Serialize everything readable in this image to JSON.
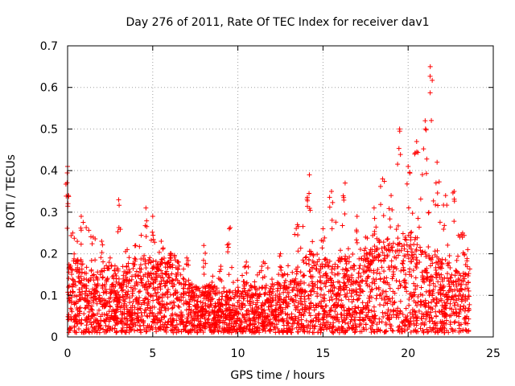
{
  "chart_data": {
    "type": "scatter",
    "title": "Day 276 of 2011, Rate Of TEC Index for receiver dav1",
    "xlabel": "GPS time / hours",
    "ylabel": "ROTI / TECUs",
    "xlim": [
      0,
      25
    ],
    "ylim": [
      0,
      0.7
    ],
    "x_ticks": [
      0,
      5,
      10,
      15,
      20,
      25
    ],
    "x_tick_labels": [
      "0",
      "5",
      "10",
      "15",
      "20",
      "25"
    ],
    "y_ticks": [
      0,
      0.1,
      0.2,
      0.3,
      0.4,
      0.5,
      0.6,
      0.7
    ],
    "y_tick_labels": [
      "0",
      "0.1",
      "0.2",
      "0.3",
      "0.4",
      "0.5",
      "0.6",
      "0.7"
    ],
    "grid": true,
    "marker": "+",
    "series": [
      {
        "name": "dav1",
        "color": "#ff0000",
        "notes": "dense cloud of ~5000 points, mostly 0.0–0.25; peaks listed as envelope",
        "envelope": [
          {
            "x": 0.0,
            "y": 0.41
          },
          {
            "x": 0.05,
            "y": 0.34
          },
          {
            "x": 0.3,
            "y": 0.25
          },
          {
            "x": 0.8,
            "y": 0.29
          },
          {
            "x": 1.5,
            "y": 0.24
          },
          {
            "x": 2.0,
            "y": 0.23
          },
          {
            "x": 2.5,
            "y": 0.19
          },
          {
            "x": 3.0,
            "y": 0.33
          },
          {
            "x": 3.5,
            "y": 0.21
          },
          {
            "x": 4.0,
            "y": 0.22
          },
          {
            "x": 4.6,
            "y": 0.31
          },
          {
            "x": 5.0,
            "y": 0.29
          },
          {
            "x": 5.5,
            "y": 0.23
          },
          {
            "x": 6.0,
            "y": 0.17
          },
          {
            "x": 7.0,
            "y": 0.19
          },
          {
            "x": 8.0,
            "y": 0.22
          },
          {
            "x": 9.0,
            "y": 0.17
          },
          {
            "x": 9.5,
            "y": 0.26
          },
          {
            "x": 10.5,
            "y": 0.18
          },
          {
            "x": 11.5,
            "y": 0.18
          },
          {
            "x": 12.5,
            "y": 0.2
          },
          {
            "x": 13.5,
            "y": 0.27
          },
          {
            "x": 14.2,
            "y": 0.39
          },
          {
            "x": 15.0,
            "y": 0.26
          },
          {
            "x": 15.5,
            "y": 0.35
          },
          {
            "x": 16.3,
            "y": 0.37
          },
          {
            "x": 17.0,
            "y": 0.29
          },
          {
            "x": 17.5,
            "y": 0.24
          },
          {
            "x": 18.0,
            "y": 0.31
          },
          {
            "x": 18.5,
            "y": 0.38
          },
          {
            "x": 19.0,
            "y": 0.34
          },
          {
            "x": 19.5,
            "y": 0.5
          },
          {
            "x": 20.0,
            "y": 0.41
          },
          {
            "x": 20.5,
            "y": 0.47
          },
          {
            "x": 21.0,
            "y": 0.52
          },
          {
            "x": 21.3,
            "y": 0.65
          },
          {
            "x": 21.7,
            "y": 0.42
          },
          {
            "x": 22.2,
            "y": 0.34
          },
          {
            "x": 22.7,
            "y": 0.35
          },
          {
            "x": 23.2,
            "y": 0.25
          },
          {
            "x": 23.5,
            "y": 0.21
          }
        ],
        "baseline_mean": [
          {
            "x": 0,
            "y": 0.09
          },
          {
            "x": 2,
            "y": 0.08
          },
          {
            "x": 4,
            "y": 0.1
          },
          {
            "x": 6,
            "y": 0.1
          },
          {
            "x": 8,
            "y": 0.06
          },
          {
            "x": 10,
            "y": 0.05
          },
          {
            "x": 12,
            "y": 0.07
          },
          {
            "x": 14,
            "y": 0.1
          },
          {
            "x": 16,
            "y": 0.1
          },
          {
            "x": 18,
            "y": 0.12
          },
          {
            "x": 20,
            "y": 0.14
          },
          {
            "x": 22,
            "y": 0.1
          },
          {
            "x": 23.6,
            "y": 0.07
          }
        ],
        "x_end": 23.6
      }
    ]
  }
}
